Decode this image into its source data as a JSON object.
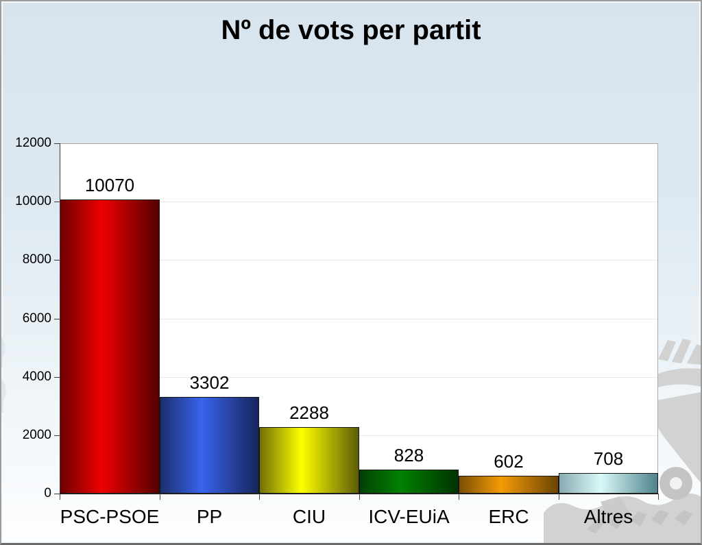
{
  "slide": {
    "title": "Nº de vots per partit"
  },
  "chart_data": {
    "type": "bar",
    "title": "Nº de vots per partit",
    "categories": [
      "PSC-PSOE",
      "PP",
      "CIU",
      "ICV-EUiA",
      "ERC",
      "Altres"
    ],
    "values": [
      10070,
      3302,
      2288,
      828,
      602,
      708
    ],
    "value_labels": [
      "10070",
      "3302",
      "2288",
      "828",
      "602",
      "708"
    ],
    "xlabel": "",
    "ylabel": "",
    "ylim": [
      0,
      12000
    ],
    "yticks": [
      0,
      2000,
      4000,
      6000,
      8000,
      10000,
      12000
    ],
    "grid": true,
    "legend": "none",
    "bar_style": "horizontal-gradient-cylinder",
    "bar_colors": [
      {
        "name": "red",
        "edge_left": "#6f0000",
        "mid": "#ee0000",
        "edge_right": "#550000"
      },
      {
        "name": "blue",
        "edge_left": "#1d2e6d",
        "mid": "#3864ec",
        "edge_right": "#17255c"
      },
      {
        "name": "yellow",
        "edge_left": "#6f6f08",
        "mid": "#ffff00",
        "edge_right": "#5c5c06"
      },
      {
        "name": "green",
        "edge_left": "#024102",
        "mid": "#028102",
        "edge_right": "#013301"
      },
      {
        "name": "orange",
        "edge_left": "#7b4e04",
        "mid": "#f49b06",
        "edge_right": "#6b4403"
      },
      {
        "name": "pale-cyan",
        "edge_left": "#88aab1",
        "mid": "#daf9f9",
        "edge_right": "#4f828b"
      }
    ]
  },
  "colors": {
    "slide_background_top": "#d7e4ee",
    "slide_background_bottom": "#fdfeff",
    "plot_background": "#ffffff",
    "plot_border": "#a8a8a8",
    "gridline": "#e8e8e8",
    "axis": "#3a3a3a",
    "text": "#000000",
    "watermark_gray": "#d2d2d2",
    "watermark_gray_dark": "#c4c4c4"
  },
  "watermark": {
    "description": "gray-logo-watermark"
  }
}
